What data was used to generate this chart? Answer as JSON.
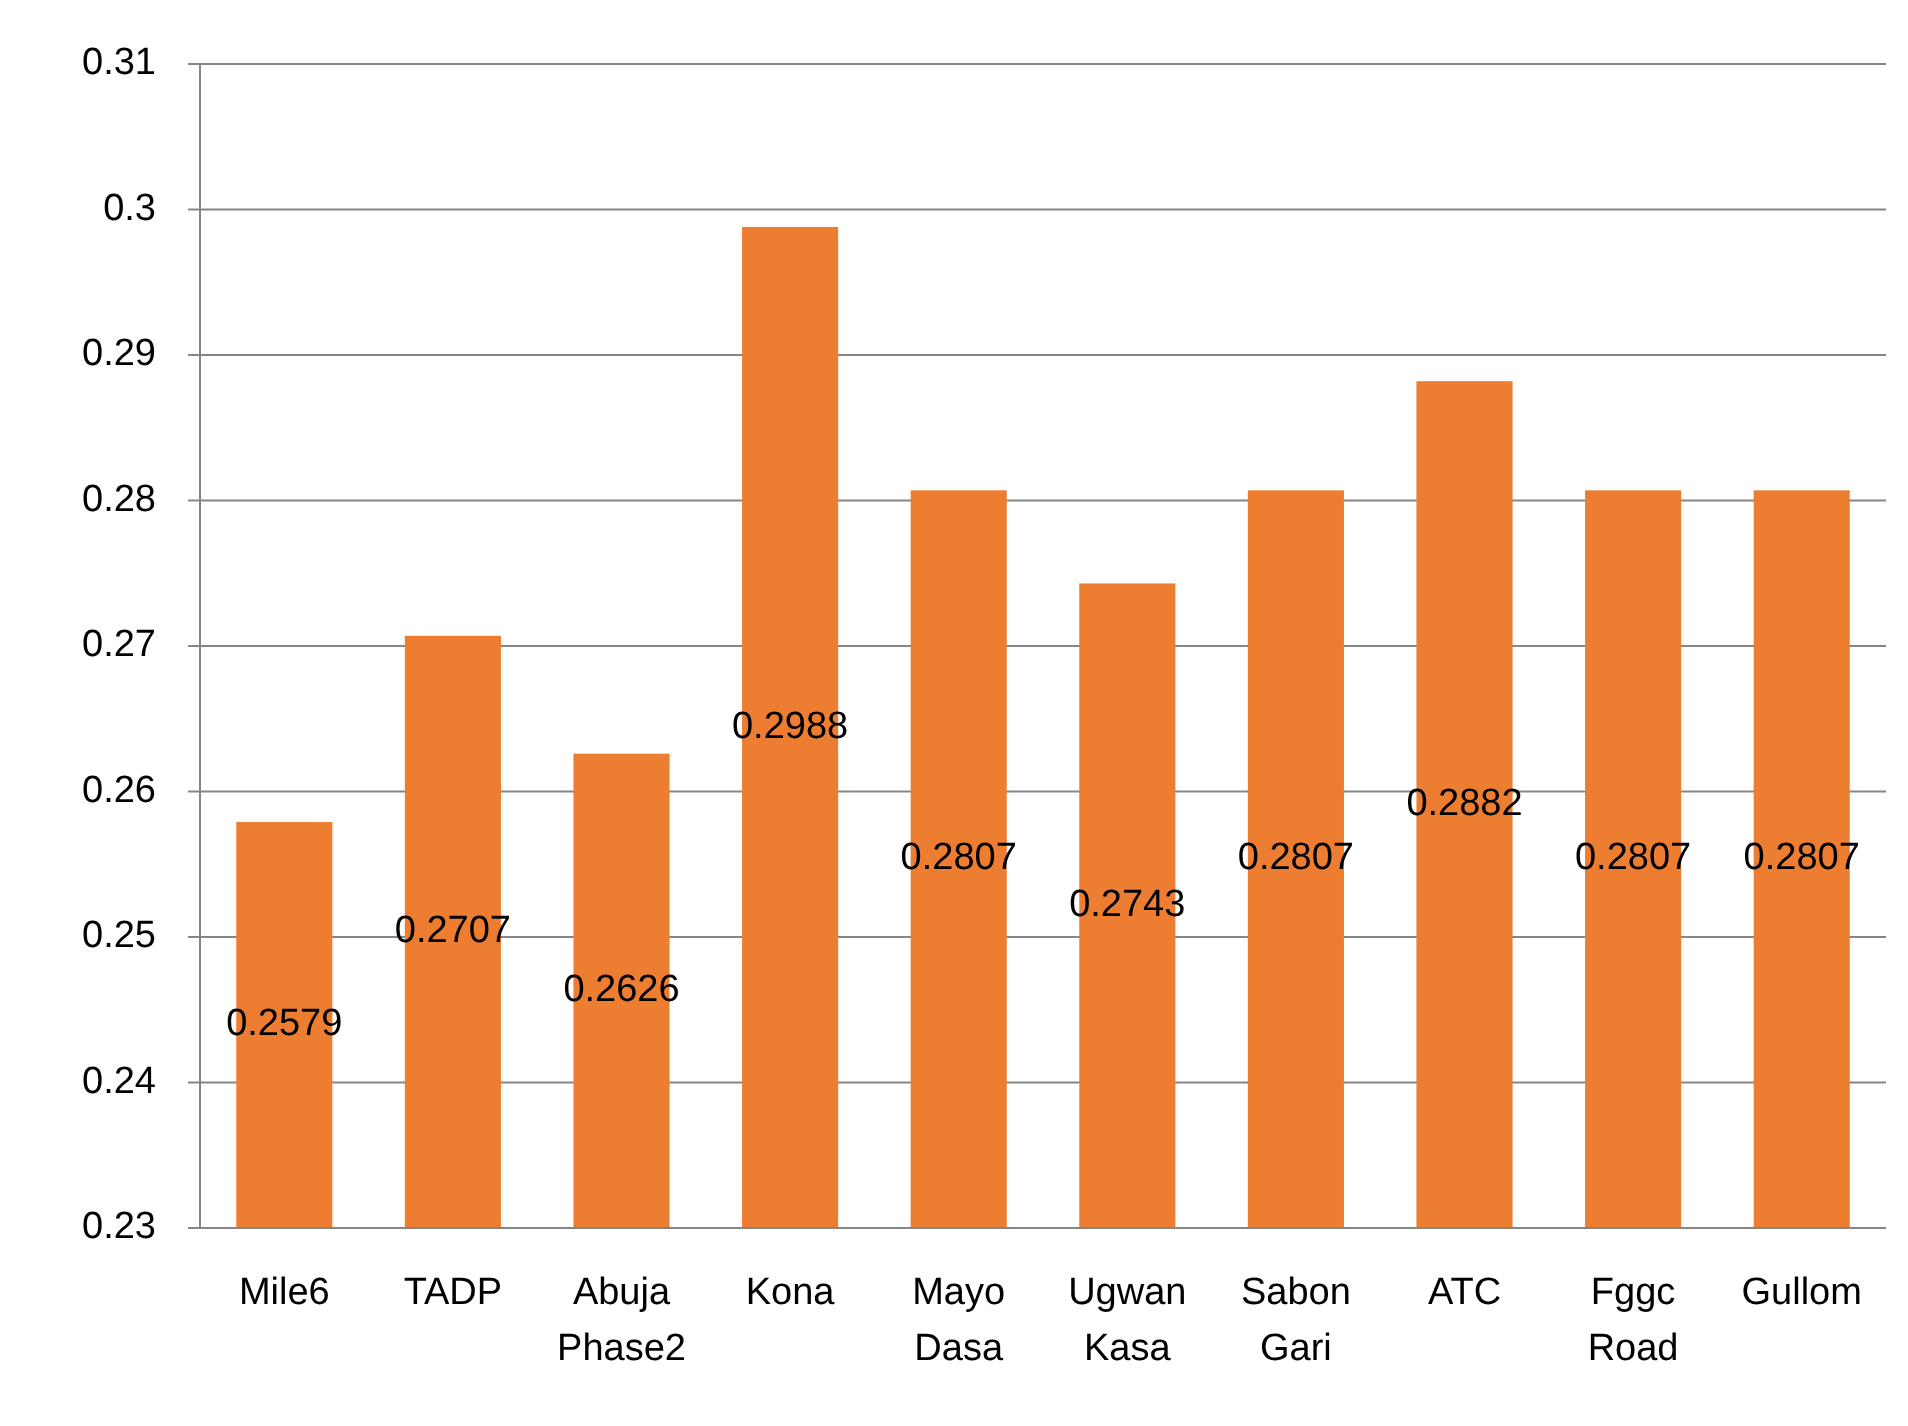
{
  "chart_data": {
    "type": "bar",
    "categories": [
      "Mile6",
      "TADP",
      "Abuja Phase2",
      "Kona",
      "Mayo Dasa",
      "Ugwan Kasa",
      "Sabon Gari",
      "ATC",
      "Fggc Road",
      "Gullom"
    ],
    "values": [
      0.2579,
      0.2707,
      0.2626,
      0.2988,
      0.2807,
      0.2743,
      0.2807,
      0.2882,
      0.2807,
      0.2807
    ],
    "color": "#ed7d31",
    "ylim": [
      0.23,
      0.31
    ],
    "yticks": [
      0.23,
      0.24,
      0.25,
      0.26,
      0.27,
      0.28,
      0.29,
      0.3,
      0.31
    ],
    "grid": "y",
    "data_labels": true
  }
}
